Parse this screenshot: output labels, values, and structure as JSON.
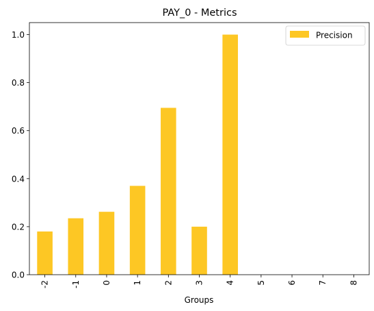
{
  "chart_data": {
    "type": "bar",
    "title": "PAY_0 - Metrics",
    "xlabel": "Groups",
    "ylabel": "",
    "categories": [
      "-2",
      "-1",
      "0",
      "1",
      "2",
      "3",
      "4",
      "5",
      "6",
      "7",
      "8"
    ],
    "series": [
      {
        "name": "Precision",
        "color": "#fdc724",
        "values": [
          0.18,
          0.235,
          0.262,
          0.37,
          0.695,
          0.2,
          1.0,
          0,
          0,
          0,
          0
        ]
      }
    ],
    "ylim": [
      0,
      1.05
    ],
    "yticks": [
      0.0,
      0.2,
      0.4,
      0.6,
      0.8,
      1.0
    ],
    "ytick_labels": [
      "0.0",
      "0.2",
      "0.4",
      "0.6",
      "0.8",
      "1.0"
    ],
    "xtick_rotation": 90,
    "legend_position": "top-right",
    "grid": false
  }
}
